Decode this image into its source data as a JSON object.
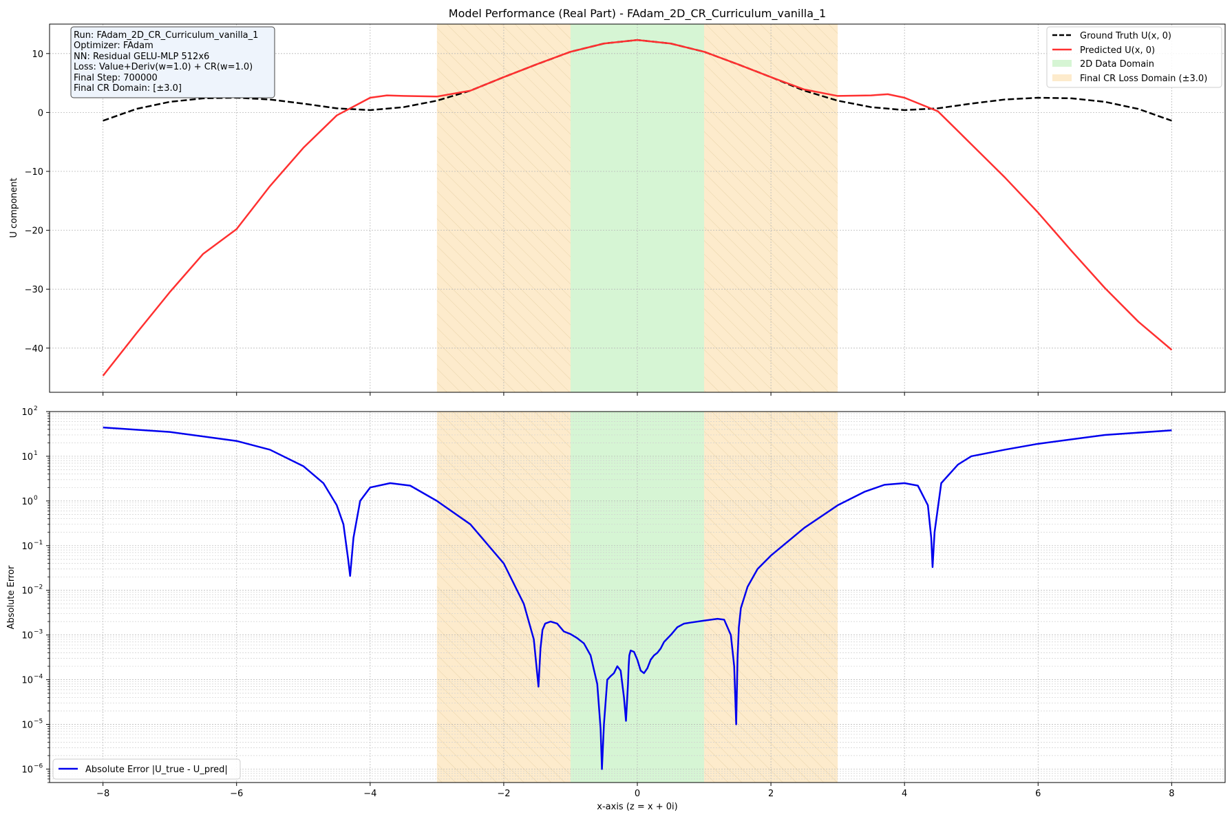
{
  "chart_data": [
    {
      "type": "line",
      "title": "Model Performance (Real Part) - FAdam_2D_CR_Curriculum_vanilla_1",
      "xlabel": "",
      "ylabel": "U component",
      "xlim": [
        -8.8,
        8.8
      ],
      "ylim": [
        -47.5,
        15
      ],
      "xticks": [
        -8,
        -6,
        -4,
        -2,
        0,
        2,
        4,
        6,
        8
      ],
      "xtick_labels": [
        "−8",
        "−6",
        "−4",
        "−2",
        "0",
        "2",
        "4",
        "6",
        "8"
      ],
      "yticks": [
        10,
        0,
        -10,
        -20,
        -30,
        -40
      ],
      "ytick_labels": [
        "10",
        "0",
        "−10",
        "−20",
        "−30",
        "−40"
      ],
      "grid": true,
      "legend_position": "top-right",
      "shaded_regions": [
        {
          "name": "Final CR Loss Domain (±3.0)",
          "x0": -3,
          "x1": 3,
          "color": "#fdebcc",
          "hatch": true
        },
        {
          "name": "2D Data Domain",
          "x0": -1,
          "x1": 1,
          "color": "#d6f5d4"
        }
      ],
      "series": [
        {
          "name": "Ground Truth U(x, 0)",
          "color": "#000000",
          "style": "dashed",
          "x": [
            -8,
            -7.5,
            -7,
            -6.5,
            -6,
            -5.5,
            -5,
            -4.5,
            -4,
            -3.5,
            -3,
            -2.5,
            -2,
            -1.5,
            -1,
            -0.5,
            0,
            0.5,
            1,
            1.5,
            2,
            2.5,
            3,
            3.5,
            4,
            4.5,
            5,
            5.5,
            6,
            6.5,
            7,
            7.5,
            8
          ],
          "y": [
            -1.4,
            0.6,
            1.8,
            2.4,
            2.5,
            2.2,
            1.5,
            0.7,
            0.4,
            0.9,
            2.0,
            3.7,
            6.0,
            8.2,
            10.3,
            11.7,
            12.3,
            11.7,
            10.3,
            8.2,
            6.0,
            3.7,
            2.0,
            0.9,
            0.4,
            0.7,
            1.5,
            2.2,
            2.5,
            2.4,
            1.8,
            0.6,
            -1.4
          ]
        },
        {
          "name": "Predicted U(x, 0)",
          "color": "#ff3030",
          "style": "solid",
          "x": [
            -8,
            -7.5,
            -7,
            -6.5,
            -6,
            -5.5,
            -5,
            -4.5,
            -4,
            -3.75,
            -3.5,
            -3,
            -2.5,
            -2,
            -1.5,
            -1,
            -0.5,
            0,
            0.5,
            1,
            1.5,
            2,
            2.5,
            3,
            3.5,
            3.75,
            4,
            4.5,
            5,
            5.5,
            6,
            6.5,
            7,
            7.5,
            8
          ],
          "y": [
            -44.7,
            -37.5,
            -30.5,
            -24.0,
            -19.8,
            -12.5,
            -6.0,
            -0.5,
            2.5,
            2.9,
            2.8,
            2.7,
            3.7,
            6.0,
            8.2,
            10.3,
            11.7,
            12.3,
            11.7,
            10.3,
            8.2,
            6.0,
            3.9,
            2.8,
            2.9,
            3.1,
            2.5,
            0.2,
            -5.4,
            -11.0,
            -17.0,
            -23.5,
            -29.8,
            -35.5,
            -40.3
          ]
        }
      ]
    },
    {
      "type": "line",
      "title": "",
      "xlabel": "x-axis (z = x + 0i)",
      "ylabel": "Absolute Error",
      "xlim": [
        -8.8,
        8.8
      ],
      "ylim": [
        5e-07,
        100
      ],
      "yscale": "log",
      "xticks": [
        -8,
        -6,
        -4,
        -2,
        0,
        2,
        4,
        6,
        8
      ],
      "xtick_labels": [
        "−8",
        "−6",
        "−4",
        "−2",
        "0",
        "2",
        "4",
        "6",
        "8"
      ],
      "yticks": [
        100,
        10,
        1,
        0.1,
        0.01,
        0.001,
        0.0001,
        1e-05,
        1e-06
      ],
      "ytick_bases": [
        "10",
        "10",
        "10",
        "10",
        "10",
        "10",
        "10",
        "10",
        "10"
      ],
      "ytick_exponents": [
        "2",
        "1",
        "0",
        "−1",
        "−2",
        "−3",
        "−4",
        "−5",
        "−6"
      ],
      "grid": true,
      "legend_position": "bottom-left",
      "shaded_regions": [
        {
          "name": "Final CR Loss Domain (±3.0)",
          "x0": -3,
          "x1": 3,
          "color": "#fdebcc",
          "hatch": true
        },
        {
          "name": "2D Data Domain",
          "x0": -1,
          "x1": 1,
          "color": "#d6f5d4"
        }
      ],
      "series": [
        {
          "name": "Absolute Error |U_true - U_pred|",
          "color": "#0000ee",
          "style": "solid",
          "x": [
            -8,
            -7,
            -6,
            -5.5,
            -5,
            -4.7,
            -4.5,
            -4.4,
            -4.33,
            -4.3,
            -4.25,
            -4.15,
            -4.0,
            -3.7,
            -3.4,
            -3.0,
            -2.5,
            -2.0,
            -1.7,
            -1.55,
            -1.48,
            -1.45,
            -1.42,
            -1.38,
            -1.3,
            -1.2,
            -1.1,
            -1.0,
            -0.9,
            -0.8,
            -0.7,
            -0.6,
            -0.55,
            -0.53,
            -0.5,
            -0.45,
            -0.4,
            -0.35,
            -0.3,
            -0.25,
            -0.2,
            -0.17,
            -0.14,
            -0.13,
            -0.12,
            -0.1,
            -0.05,
            0,
            0.05,
            0.1,
            0.15,
            0.2,
            0.25,
            0.3,
            0.35,
            0.4,
            0.5,
            0.6,
            0.7,
            0.8,
            1.0,
            1.2,
            1.3,
            1.4,
            1.45,
            1.48,
            1.5,
            1.52,
            1.55,
            1.65,
            1.8,
            2.0,
            2.5,
            3.0,
            3.4,
            3.7,
            4.0,
            4.2,
            4.35,
            4.4,
            4.42,
            4.45,
            4.55,
            4.8,
            5.0,
            5.5,
            6.0,
            7.0,
            8.0
          ],
          "y": [
            44,
            35,
            22,
            14,
            6,
            2.5,
            0.8,
            0.3,
            0.05,
            0.021,
            0.15,
            1.0,
            2.0,
            2.5,
            2.2,
            1.0,
            0.3,
            0.04,
            0.005,
            0.0008,
            7e-05,
            0.0005,
            0.0013,
            0.0018,
            0.002,
            0.0018,
            0.0012,
            0.00105,
            0.00085,
            0.00065,
            0.00035,
            8e-05,
            8e-06,
            1e-06,
            1e-05,
            0.0001,
            0.00012,
            0.00014,
            0.0002,
            0.00016,
            4e-05,
            1.2e-05,
            8e-05,
            0.0002,
            0.00035,
            0.00045,
            0.00042,
            0.00028,
            0.00016,
            0.00014,
            0.00018,
            0.00028,
            0.00035,
            0.0004,
            0.0005,
            0.0007,
            0.001,
            0.0015,
            0.0018,
            0.0019,
            0.0021,
            0.0023,
            0.0022,
            0.001,
            0.0002,
            1e-05,
            0.0003,
            0.0015,
            0.004,
            0.012,
            0.03,
            0.06,
            0.25,
            0.8,
            1.6,
            2.3,
            2.5,
            2.2,
            0.8,
            0.15,
            0.033,
            0.2,
            2.5,
            6.5,
            10,
            14,
            19,
            30,
            38
          ]
        }
      ]
    }
  ],
  "info_box": [
    "Run: FAdam_2D_CR_Curriculum_vanilla_1",
    "Optimizer: FAdam",
    "NN: Residual GELU-MLP 512x6",
    "Loss: Value+Deriv(w=1.0) + CR(w=1.0)",
    "Final Step: 700000",
    "Final CR Domain: [±3.0]"
  ],
  "legend_top": [
    {
      "label": "Ground Truth U(x, 0)",
      "color": "#000000",
      "kind": "dashed"
    },
    {
      "label": "Predicted U(x, 0)",
      "color": "#ff3030",
      "kind": "line"
    },
    {
      "label": "2D Data Domain",
      "color": "#d6f5d4",
      "kind": "patch"
    },
    {
      "label": "Final CR Loss Domain (±3.0)",
      "color": "#fdebcc",
      "kind": "patch"
    }
  ],
  "legend_bottom": [
    {
      "label": "Absolute Error |U_true - U_pred|",
      "color": "#0000ee",
      "kind": "line"
    }
  ]
}
